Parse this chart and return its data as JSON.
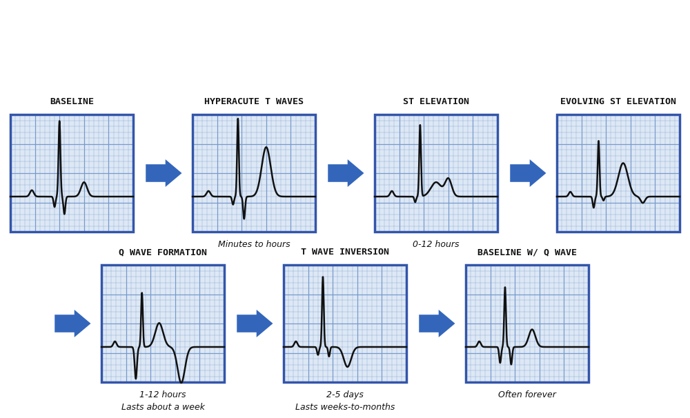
{
  "title_labels": [
    "BASELINE",
    "HYPERACUTE T WAVES",
    "ST ELEVATION",
    "EVOLVING ST ELEVATION",
    "Q WAVE FORMATION",
    "T WAVE INVERSION",
    "BASELINE W/ Q WAVE"
  ],
  "sub_labels_line1": [
    "",
    "Minutes to hours",
    "0-12 hours",
    "",
    "1-12 hours",
    "2-5 days",
    "Often forever"
  ],
  "sub_labels_line2": [
    "",
    "",
    "",
    "",
    "Lasts about a week",
    "Lasts weeks-to-months",
    ""
  ],
  "grid_color": "#7799cc",
  "box_color": "#3355aa",
  "bg_color": "#dde8f5",
  "line_color": "#111111",
  "arrow_color": "#3366bb",
  "text_color": "#111111",
  "title_font_size": 9.5,
  "sub_font_size": 9,
  "fig_w": 10.0,
  "fig_h": 6.06
}
